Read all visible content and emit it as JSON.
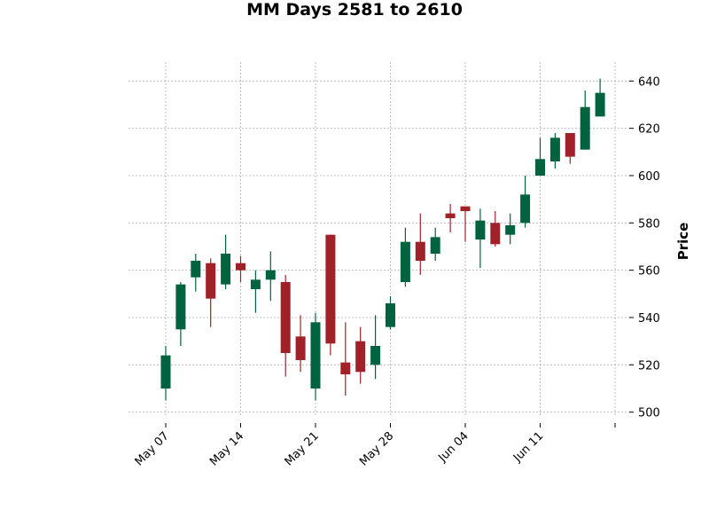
{
  "chart_data": {
    "type": "candlestick",
    "title": "MM Days 2581 to 2610",
    "ylabel": "Price",
    "xlabel": "",
    "ylim": [
      498,
      648
    ],
    "yticks": [
      500,
      520,
      540,
      560,
      580,
      600,
      620,
      640
    ],
    "xticks": [
      {
        "label": "May 07",
        "index": 0
      },
      {
        "label": "May 14",
        "index": 5
      },
      {
        "label": "May 21",
        "index": 10
      },
      {
        "label": "May 28",
        "index": 15
      },
      {
        "label": "Jun 04",
        "index": 20
      },
      {
        "label": "Jun 11",
        "index": 25
      },
      {
        "label": "",
        "index": 30
      }
    ],
    "grid": true,
    "colors": {
      "up": "#006340",
      "down": "#a02128",
      "grid": "#b0b0b0"
    },
    "candles": [
      {
        "open": 510,
        "high": 528,
        "low": 505,
        "close": 524
      },
      {
        "open": 535,
        "high": 555,
        "low": 528,
        "close": 554
      },
      {
        "open": 557,
        "high": 567,
        "low": 551,
        "close": 564
      },
      {
        "open": 563,
        "high": 565,
        "low": 536,
        "close": 548
      },
      {
        "open": 554,
        "high": 575,
        "low": 552,
        "close": 567
      },
      {
        "open": 563,
        "high": 566,
        "low": 555,
        "close": 560
      },
      {
        "open": 552,
        "high": 560,
        "low": 542,
        "close": 556
      },
      {
        "open": 556,
        "high": 568,
        "low": 547,
        "close": 560
      },
      {
        "open": 555,
        "high": 558,
        "low": 515,
        "close": 525
      },
      {
        "open": 532,
        "high": 541,
        "low": 517,
        "close": 522
      },
      {
        "open": 510,
        "high": 542,
        "low": 505,
        "close": 538
      },
      {
        "open": 575,
        "high": 575,
        "low": 524,
        "close": 529
      },
      {
        "open": 521,
        "high": 538,
        "low": 507,
        "close": 516
      },
      {
        "open": 530,
        "high": 536,
        "low": 512,
        "close": 517
      },
      {
        "open": 520,
        "high": 541,
        "low": 514,
        "close": 528
      },
      {
        "open": 536,
        "high": 549,
        "low": 535,
        "close": 546
      },
      {
        "open": 555,
        "high": 578,
        "low": 553,
        "close": 572
      },
      {
        "open": 572,
        "high": 584,
        "low": 558,
        "close": 564
      },
      {
        "open": 567,
        "high": 578,
        "low": 564,
        "close": 574
      },
      {
        "open": 584,
        "high": 588,
        "low": 576,
        "close": 582
      },
      {
        "open": 587,
        "high": 587,
        "low": 572,
        "close": 585
      },
      {
        "open": 573,
        "high": 586,
        "low": 561,
        "close": 581
      },
      {
        "open": 580,
        "high": 585,
        "low": 570,
        "close": 571
      },
      {
        "open": 575,
        "high": 584,
        "low": 571,
        "close": 579
      },
      {
        "open": 580,
        "high": 600,
        "low": 578,
        "close": 592
      },
      {
        "open": 600,
        "high": 616,
        "low": 600,
        "close": 607
      },
      {
        "open": 606,
        "high": 618,
        "low": 603,
        "close": 616
      },
      {
        "open": 618,
        "high": 618,
        "low": 605,
        "close": 608
      },
      {
        "open": 611,
        "high": 636,
        "low": 611,
        "close": 629
      },
      {
        "open": 625,
        "high": 641,
        "low": 625,
        "close": 635
      }
    ]
  }
}
